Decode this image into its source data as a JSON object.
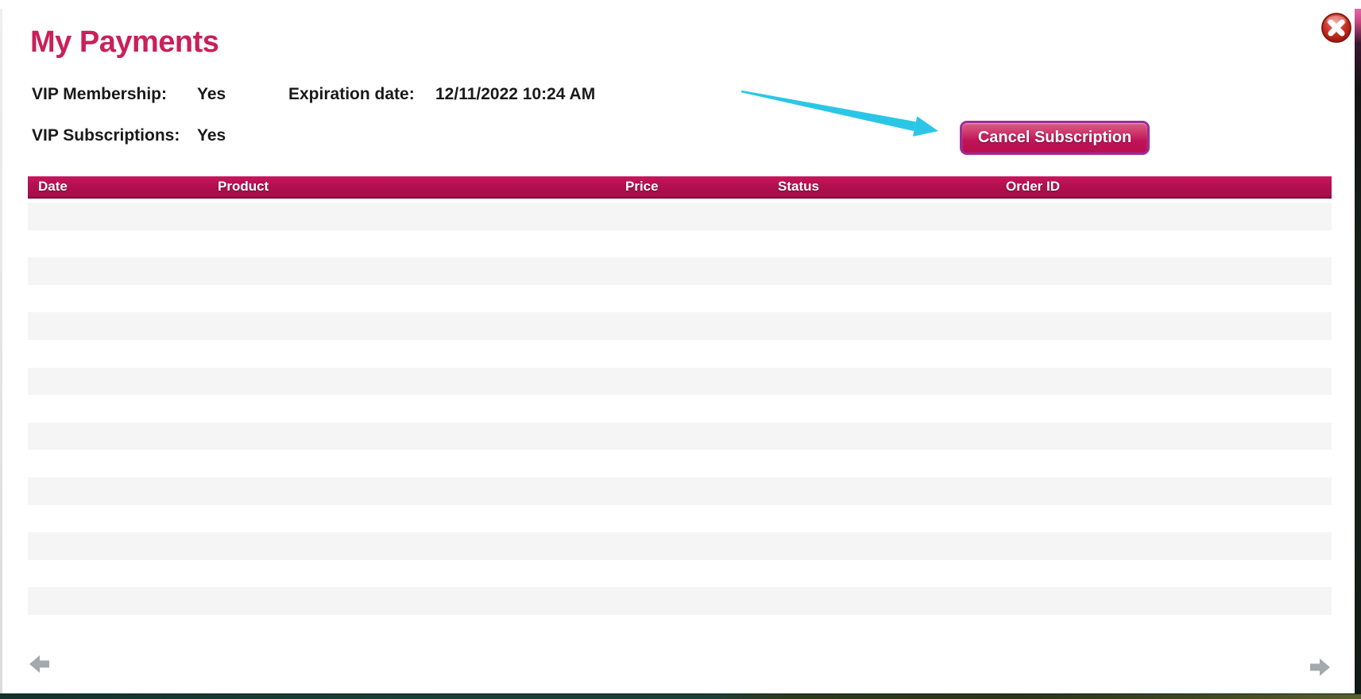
{
  "dialog": {
    "title": "My Payments",
    "close_icon": "close-x-circle"
  },
  "account": {
    "membership": {
      "label": "VIP Membership:",
      "value": "Yes"
    },
    "expiration": {
      "label": "Expiration date:",
      "value": "12/11/2022 10:24 AM"
    },
    "subscriptions": {
      "label": "VIP Subscriptions:",
      "value": "Yes"
    },
    "cancel_button_label": "Cancel Subscription"
  },
  "table": {
    "columns": [
      "Date",
      "Product",
      "Price",
      "Status",
      "Order ID"
    ],
    "rows": [],
    "empty_row_slots": 15
  },
  "pagination": {
    "prev_icon": "arrow-left",
    "next_icon": "arrow-right"
  },
  "annotation": {
    "icon": "cyan-pointer-arrow",
    "color": "#2bc6e6"
  },
  "colors": {
    "title": "#c92059",
    "table-header": "#b31051",
    "table-header-dark": "#a50d47",
    "table-header-border": "#7d0936",
    "button-top": "#d85e85",
    "button-bottom": "#b80f52",
    "button-border": "#9c2d9a",
    "stripe": "#f5f5f6",
    "close-red": "#c32b1e",
    "pager-gray": "#a3a9ac",
    "annotation-cyan": "#2bc6e6"
  }
}
